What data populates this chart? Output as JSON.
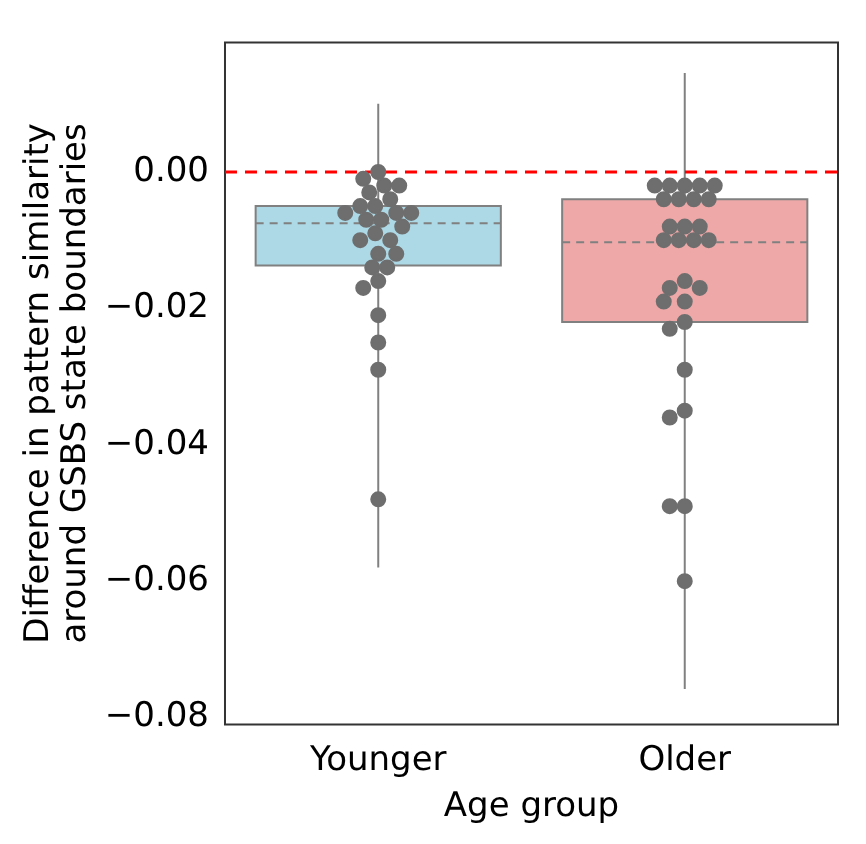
{
  "chart_data": {
    "type": "box",
    "xlabel": "Age group",
    "ylabel": "Difference in pattern similarity\naround GSBS state boundaries",
    "categories": [
      "Younger",
      "Older"
    ],
    "colors": [
      "#add8e6",
      "#eea8a8"
    ],
    "boxes": [
      {
        "low": -0.058,
        "q1": -0.0137,
        "median": -0.0075,
        "q3": -0.005,
        "high": 0.01
      },
      {
        "low": -0.0758,
        "q1": -0.022,
        "median": -0.0103,
        "q3": -0.004,
        "high": 0.0145
      }
    ],
    "series": [
      {
        "type": "scatter",
        "color": "#6e6e6e",
        "x": [
          "Younger",
          "Younger",
          "Younger",
          "Younger",
          "Younger",
          "Younger",
          "Younger",
          "Younger",
          "Younger",
          "Younger",
          "Younger",
          "Younger",
          "Younger",
          "Younger",
          "Younger",
          "Younger",
          "Younger",
          "Younger",
          "Younger",
          "Younger",
          "Younger",
          "Younger",
          "Younger",
          "Younger",
          "Younger",
          "Younger",
          "Younger",
          "Older",
          "Older",
          "Older",
          "Older",
          "Older",
          "Older",
          "Older",
          "Older",
          "Older",
          "Older",
          "Older",
          "Older",
          "Older",
          "Older",
          "Older",
          "Older",
          "Older",
          "Older",
          "Older",
          "Older",
          "Older",
          "Older",
          "Older",
          "Older",
          "Older",
          "Older",
          "Older",
          "Older",
          "Older"
        ],
        "values": [
          0.0,
          -0.001,
          -0.002,
          -0.002,
          -0.003,
          -0.004,
          -0.005,
          -0.005,
          -0.006,
          -0.006,
          -0.006,
          -0.007,
          -0.007,
          -0.008,
          -0.009,
          -0.01,
          -0.01,
          -0.012,
          -0.012,
          -0.014,
          -0.014,
          -0.016,
          -0.017,
          -0.021,
          -0.025,
          -0.029,
          -0.048,
          -0.002,
          -0.002,
          -0.002,
          -0.002,
          -0.002,
          -0.004,
          -0.004,
          -0.004,
          -0.004,
          -0.008,
          -0.008,
          -0.008,
          -0.01,
          -0.01,
          -0.01,
          -0.01,
          -0.016,
          -0.017,
          -0.017,
          -0.019,
          -0.019,
          -0.022,
          -0.023,
          -0.029,
          -0.035,
          -0.036,
          -0.049,
          -0.049,
          -0.06
        ]
      }
    ],
    "ref_lines": [
      {
        "axis": "y",
        "value": 0,
        "color": "#ff0000",
        "line_style": "dashed"
      }
    ],
    "ylim": [
      -0.081,
      0.019
    ],
    "yticks": [
      {
        "value": 0,
        "label": "0.00"
      },
      {
        "value": -0.02,
        "label": "−0.02"
      },
      {
        "value": -0.04,
        "label": "−0.04"
      },
      {
        "value": -0.06,
        "label": "−0.06"
      },
      {
        "value": -0.08,
        "label": "−0.08"
      }
    ],
    "grid": false,
    "legend": false,
    "marker": "circle"
  }
}
